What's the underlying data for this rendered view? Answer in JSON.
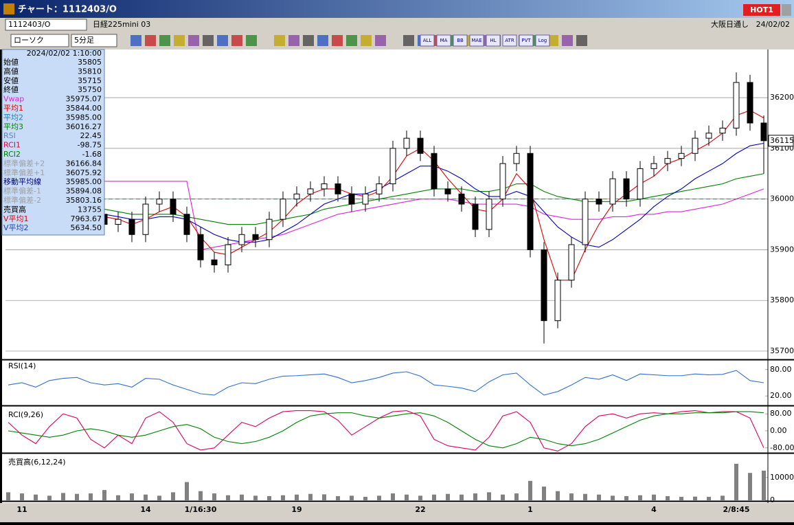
{
  "window": {
    "title": "チャート：1112403/O",
    "hot_button": "HOT1"
  },
  "toolbar": {
    "symbol": "1112403/O",
    "instrument": "日経225mini 03",
    "session": "大阪日通し",
    "date": "24/02/02",
    "chart_style": "ローソク",
    "interval": "5分足",
    "buttons": [
      "ALL",
      "MA",
      "BB",
      "MAE",
      "HL",
      "ATR",
      "PVT",
      "Log"
    ]
  },
  "info_panel": {
    "datetime": "2024/02/02  1:10:00",
    "rows": [
      {
        "label": "始値",
        "value": "35805",
        "color": "#000000"
      },
      {
        "label": "高値",
        "value": "35810",
        "color": "#000000"
      },
      {
        "label": "安値",
        "value": "35715",
        "color": "#000000"
      },
      {
        "label": "終値",
        "value": "35750",
        "color": "#000000"
      },
      {
        "label": "Vwap",
        "value": "35975.07",
        "color": "#e020e0"
      },
      {
        "label": "平均1",
        "value": "35844.00",
        "color": "#e00000"
      },
      {
        "label": "平均2",
        "value": "35985.00",
        "color": "#2080c0"
      },
      {
        "label": "平均3",
        "value": "36016.27",
        "color": "#008000"
      },
      {
        "label": "RSI",
        "value": "22.45",
        "color": "#6080c0"
      },
      {
        "label": "RCI1",
        "value": "-98.75",
        "color": "#e00040"
      },
      {
        "label": "RCI2",
        "value": "-1.68",
        "color": "#008000"
      },
      {
        "label": "標準偏差+2",
        "value": "36166.84",
        "color": "#a0a0a0"
      },
      {
        "label": "標準偏差+1",
        "value": "36075.92",
        "color": "#a0a0a0"
      },
      {
        "label": "移動平均線",
        "value": "35985.00",
        "color": "#000080"
      },
      {
        "label": "標準偏差-1",
        "value": "35894.08",
        "color": "#a0a0a0"
      },
      {
        "label": "標準偏差-2",
        "value": "35803.16",
        "color": "#a0a0a0"
      },
      {
        "label": "売買高",
        "value": "13755",
        "color": "#000000"
      },
      {
        "label": "V平均1",
        "value": "7963.67",
        "color": "#e00000"
      },
      {
        "label": "V平均2",
        "value": "5634.50",
        "color": "#2040c0"
      }
    ]
  },
  "chart_data": [
    {
      "type": "candlestick",
      "categories": [
        null,
        "11",
        null,
        null,
        null,
        null,
        null,
        null,
        null,
        null,
        "14",
        null,
        null,
        null,
        "1/16:30",
        null,
        null,
        null,
        null,
        null,
        null,
        "19",
        null,
        null,
        null,
        null,
        null,
        null,
        null,
        null,
        "22",
        null,
        null,
        null,
        null,
        null,
        null,
        null,
        "1",
        null,
        null,
        null,
        null,
        null,
        null,
        null,
        null,
        "4",
        null,
        null,
        null,
        null,
        null,
        "2/8:45",
        null,
        null
      ],
      "open": [
        35950,
        35960,
        35970,
        35950,
        35960,
        35980,
        35990,
        35970,
        35950,
        35960,
        35930,
        35990,
        36000,
        35970,
        35930,
        35880,
        35870,
        35910,
        35930,
        35920,
        35960,
        36000,
        36010,
        36020,
        36030,
        36010,
        35990,
        36010,
        36030,
        36100,
        36120,
        36090,
        36020,
        36010,
        35990,
        35940,
        36000,
        36070,
        36090,
        35900,
        35760,
        35840,
        35910,
        36000,
        35990,
        36040,
        36000,
        36060,
        36070,
        36080,
        36090,
        36120,
        36130,
        36140,
        36230,
        36150
      ],
      "high": [
        35975,
        35985,
        35985,
        35975,
        35995,
        36005,
        36005,
        35985,
        35975,
        35975,
        36005,
        36015,
        36015,
        35985,
        35945,
        35895,
        35925,
        35945,
        35945,
        35975,
        36015,
        36025,
        36035,
        36045,
        36045,
        36025,
        36025,
        36045,
        36115,
        36135,
        36135,
        36105,
        36035,
        36025,
        36005,
        36015,
        36085,
        36105,
        36105,
        35915,
        35855,
        35925,
        36015,
        36015,
        36055,
        36055,
        36075,
        36085,
        36095,
        36105,
        36135,
        36145,
        36155,
        36250,
        36245,
        36165
      ],
      "low": [
        35935,
        35945,
        35935,
        35935,
        35945,
        35965,
        35955,
        35935,
        35935,
        35915,
        35915,
        35975,
        35955,
        35915,
        35865,
        35855,
        35855,
        35895,
        35905,
        35905,
        35945,
        35985,
        35995,
        36005,
        35995,
        35975,
        35975,
        35995,
        36015,
        36085,
        36075,
        36005,
        35995,
        35975,
        35925,
        35925,
        35985,
        36055,
        35885,
        35715,
        35745,
        35825,
        35895,
        35975,
        35975,
        35985,
        35985,
        36045,
        36055,
        36065,
        36075,
        36105,
        36115,
        36125,
        36135,
        36050
      ],
      "close": [
        35960,
        35970,
        35950,
        35960,
        35980,
        35990,
        35970,
        35950,
        35960,
        35930,
        35990,
        36000,
        35970,
        35930,
        35880,
        35870,
        35910,
        35930,
        35920,
        35960,
        36000,
        36010,
        36020,
        36030,
        36010,
        35990,
        36010,
        36030,
        36100,
        36120,
        36090,
        36020,
        36010,
        35990,
        35940,
        36000,
        36070,
        36090,
        35900,
        35760,
        35840,
        35910,
        36000,
        35990,
        36040,
        36000,
        36060,
        36070,
        36080,
        36090,
        36120,
        36130,
        36140,
        36230,
        36150,
        36115
      ],
      "color_up": "#ffffff",
      "color_down": "#000000",
      "series": [
        {
          "color": "#e020e0",
          "values": [
            36035,
            36035,
            36035,
            36035,
            36035,
            36035,
            36035,
            36035,
            36035,
            36035,
            36035,
            36035,
            36035,
            36035,
            35900,
            35905,
            35910,
            35915,
            35920,
            35925,
            35930,
            35940,
            35950,
            35960,
            35970,
            35975,
            35980,
            35985,
            35990,
            35995,
            36000,
            36000,
            36000,
            35995,
            35990,
            35990,
            35990,
            35990,
            35985,
            35970,
            35965,
            35960,
            35960,
            35960,
            35965,
            35965,
            35970,
            35970,
            35975,
            35975,
            35980,
            35985,
            35990,
            36000,
            36010,
            36020
          ]
        },
        {
          "color": "#008000",
          "values": [
            35990,
            35990,
            35985,
            35985,
            35985,
            35985,
            35985,
            35980,
            35975,
            35970,
            35970,
            35970,
            35970,
            35965,
            35960,
            35955,
            35950,
            35950,
            35950,
            35955,
            35960,
            35965,
            35970,
            35980,
            35985,
            35990,
            35995,
            36000,
            36005,
            36010,
            36015,
            36020,
            36020,
            36020,
            36015,
            36015,
            36020,
            36030,
            36030,
            36015,
            36005,
            36000,
            35995,
            35995,
            35995,
            35995,
            36000,
            36005,
            36010,
            36015,
            36020,
            36025,
            36030,
            36040,
            36045,
            36050
          ]
        },
        {
          "color": "#0000c0",
          "values": [
            35975,
            35975,
            35970,
            35970,
            35970,
            35975,
            35975,
            35970,
            35965,
            35960,
            35960,
            35965,
            35965,
            35960,
            35945,
            35930,
            35920,
            35915,
            35915,
            35920,
            35935,
            35950,
            35970,
            35990,
            36000,
            36010,
            36010,
            36020,
            36035,
            36050,
            36065,
            36065,
            36055,
            36040,
            36020,
            36005,
            36005,
            36015,
            36005,
            35975,
            35945,
            35925,
            35910,
            35905,
            35920,
            35940,
            35960,
            35985,
            36005,
            36020,
            36040,
            36055,
            36070,
            36090,
            36105,
            36110
          ]
        },
        {
          "color": "#e00000",
          "values": [
            35960,
            35965,
            35960,
            35960,
            35970,
            35980,
            35980,
            35965,
            35960,
            35950,
            35960,
            35975,
            35985,
            35965,
            35925,
            35895,
            35890,
            35905,
            35920,
            35935,
            35960,
            35990,
            36010,
            36020,
            36020,
            36010,
            36005,
            36015,
            36045,
            36085,
            36100,
            36075,
            36040,
            36010,
            35980,
            35975,
            36000,
            36050,
            36020,
            35920,
            35840,
            35840,
            35900,
            35950,
            35990,
            36010,
            36030,
            36045,
            36070,
            36080,
            36095,
            36110,
            36130,
            36165,
            36175,
            36160
          ]
        }
      ],
      "ylim": [
        35685,
        36291
      ],
      "yticks": [
        35700,
        35800,
        35900,
        36000,
        36100,
        36200
      ],
      "grid": true,
      "last_price": 36115,
      "ref_line": 36000
    },
    {
      "type": "line",
      "title": "RSI(14)",
      "series": [
        {
          "color": "#3070d0",
          "values": [
            45,
            50,
            40,
            55,
            60,
            62,
            50,
            45,
            48,
            40,
            60,
            58,
            45,
            35,
            25,
            22,
            40,
            50,
            48,
            58,
            65,
            66,
            68,
            70,
            62,
            50,
            55,
            62,
            72,
            75,
            65,
            45,
            42,
            38,
            30,
            52,
            68,
            72,
            45,
            22,
            30,
            45,
            62,
            58,
            68,
            55,
            70,
            68,
            66,
            66,
            70,
            68,
            69,
            78,
            55,
            50
          ]
        }
      ],
      "ylim": [
        0,
        100
      ],
      "yticks": [
        {
          "value": 20,
          "label": "20.00"
        },
        {
          "value": 80,
          "label": "80.00"
        }
      ]
    },
    {
      "type": "line",
      "title": "RCI(9,26)",
      "series": [
        {
          "color": "#e00060",
          "values": [
            40,
            -20,
            -60,
            20,
            80,
            60,
            -40,
            -80,
            -20,
            -60,
            60,
            90,
            40,
            -60,
            -90,
            -80,
            -20,
            40,
            20,
            60,
            90,
            95,
            95,
            90,
            50,
            -20,
            20,
            60,
            90,
            95,
            70,
            -40,
            -70,
            -80,
            -90,
            -30,
            70,
            90,
            40,
            -80,
            -95,
            -60,
            20,
            70,
            80,
            60,
            80,
            85,
            80,
            90,
            95,
            85,
            90,
            90,
            60,
            -80
          ]
        },
        {
          "color": "#008000",
          "values": [
            0,
            -10,
            -20,
            -30,
            -20,
            0,
            10,
            0,
            -20,
            -30,
            -20,
            0,
            20,
            30,
            10,
            -30,
            -50,
            -60,
            -50,
            -30,
            0,
            40,
            70,
            80,
            85,
            85,
            70,
            60,
            70,
            80,
            85,
            70,
            40,
            0,
            -40,
            -70,
            -80,
            -60,
            -30,
            -40,
            -60,
            -70,
            -60,
            -40,
            -10,
            20,
            50,
            70,
            80,
            80,
            85,
            85,
            85,
            90,
            90,
            85
          ]
        }
      ],
      "ylim": [
        -100,
        100
      ],
      "yticks": [
        {
          "value": -80,
          "label": "-80.00"
        },
        {
          "value": 0,
          "label": "0.00"
        },
        {
          "value": 80,
          "label": "80.00"
        }
      ]
    },
    {
      "type": "bar",
      "title": "売買高(6,12,24)",
      "color": "#808080",
      "values": [
        3500,
        3000,
        2500,
        2000,
        3200,
        2800,
        3000,
        4500,
        2200,
        3000,
        2500,
        2000,
        3500,
        8000,
        4000,
        3000,
        2200,
        2500,
        2000,
        1800,
        2200,
        2500,
        2800,
        2600,
        1800,
        2000,
        1500,
        2000,
        3000,
        2500,
        2000,
        2500,
        2800,
        2500,
        3000,
        3500,
        2500,
        3000,
        8500,
        6000,
        4000,
        3000,
        2800,
        2500,
        2000,
        1800,
        2200,
        2500,
        1800,
        1500,
        1600,
        1500,
        2000,
        16000,
        12000,
        13000
      ],
      "ylim": [
        0,
        19000
      ],
      "yticks": [
        0,
        10000
      ]
    }
  ]
}
